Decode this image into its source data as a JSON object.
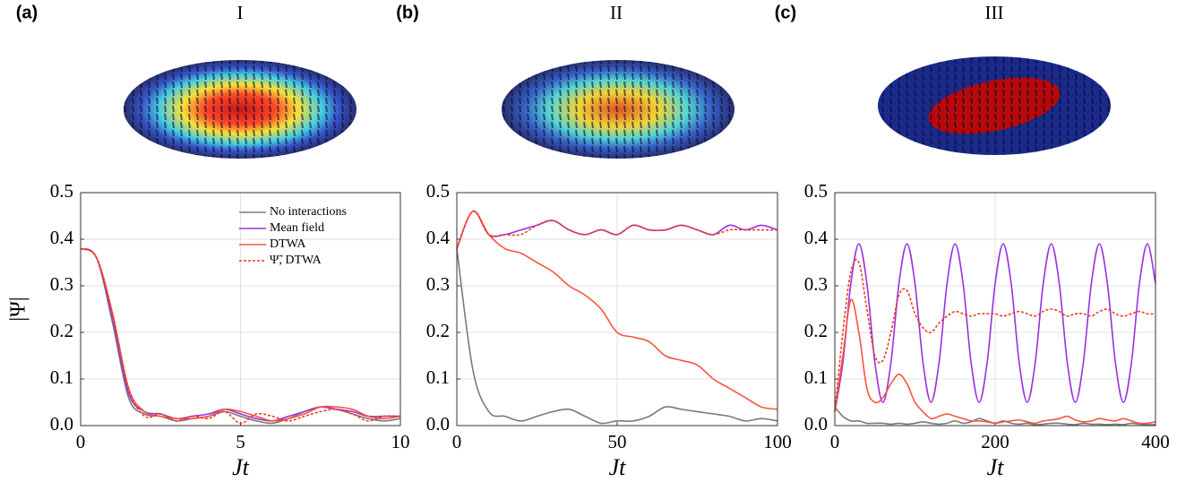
{
  "chart_data": [
    {
      "type": "line",
      "label": "(a)",
      "title": "I",
      "ylabel": "|Ψ|",
      "xlabel": "Jt",
      "x": [
        0,
        0.5,
        1,
        1.5,
        2,
        2.5,
        3,
        3.5,
        4,
        4.5,
        5,
        5.5,
        6,
        6.5,
        7,
        7.5,
        8,
        8.5,
        9,
        9.5,
        10
      ],
      "xlim": [
        0,
        10
      ],
      "xticks": [
        0,
        5,
        10
      ],
      "ylim": [
        0,
        0.5
      ],
      "yticks": [
        {
          "value": 0,
          "label": "0.0"
        },
        0.1,
        0.2,
        0.3,
        0.4,
        0.5
      ],
      "grid": true,
      "legend": "upper right",
      "series": [
        {
          "name": "No interactions",
          "color": "#7a7a7a",
          "values": [
            0.38,
            0.36,
            0.22,
            0.06,
            0.025,
            0.02,
            0.01,
            0.015,
            0.02,
            0.03,
            0.02,
            0.01,
            0.005,
            0.015,
            0.03,
            0.04,
            0.035,
            0.025,
            0.015,
            0.01,
            0.015
          ]
        },
        {
          "name": "Mean field",
          "color": "#9b30e0",
          "values": [
            0.38,
            0.36,
            0.23,
            0.07,
            0.03,
            0.025,
            0.015,
            0.02,
            0.025,
            0.035,
            0.025,
            0.015,
            0.01,
            0.02,
            0.03,
            0.04,
            0.035,
            0.03,
            0.02,
            0.02,
            0.02
          ]
        },
        {
          "name": "DTWA",
          "color": "#f4563e",
          "values": [
            0.38,
            0.36,
            0.24,
            0.08,
            0.03,
            0.02,
            0.015,
            0.015,
            0.02,
            0.035,
            0.03,
            0.02,
            0.01,
            0.015,
            0.025,
            0.04,
            0.04,
            0.035,
            0.02,
            0.015,
            0.02
          ]
        },
        {
          "name": "Ψ̃, DTWA",
          "color": "#f03a22",
          "dashed": true,
          "values": [
            0.38,
            0.36,
            0.24,
            0.08,
            0.02,
            0.025,
            0.01,
            0.02,
            0.015,
            0.03,
            0.005,
            0.025,
            0.02,
            0.01,
            0.02,
            0.03,
            0.035,
            0.025,
            0.01,
            0.02,
            0.02
          ]
        }
      ]
    },
    {
      "type": "line",
      "label": "(b)",
      "title": "II",
      "xlabel": "Jt",
      "x": [
        0,
        5,
        10,
        15,
        20,
        25,
        30,
        35,
        40,
        45,
        50,
        55,
        60,
        65,
        70,
        75,
        80,
        85,
        90,
        95,
        100
      ],
      "xlim": [
        0,
        100
      ],
      "xticks": [
        0,
        50,
        100
      ],
      "ylim": [
        0,
        0.5
      ],
      "yticks": [
        {
          "value": 0,
          "label": "0.0"
        },
        0.1,
        0.2,
        0.3,
        0.4,
        0.5
      ],
      "grid": true,
      "series": [
        {
          "color": "#7a7a7a",
          "values": [
            0.38,
            0.12,
            0.03,
            0.02,
            0.01,
            0.02,
            0.03,
            0.035,
            0.02,
            0.005,
            0.01,
            0.01,
            0.02,
            0.04,
            0.035,
            0.03,
            0.025,
            0.02,
            0.01,
            0.015,
            0.01
          ]
        },
        {
          "color": "#9b30e0",
          "values": [
            0.38,
            0.46,
            0.41,
            0.41,
            0.42,
            0.43,
            0.44,
            0.42,
            0.41,
            0.42,
            0.41,
            0.43,
            0.42,
            0.42,
            0.43,
            0.42,
            0.41,
            0.43,
            0.42,
            0.43,
            0.42
          ]
        },
        {
          "color": "#f4563e",
          "values": [
            0.38,
            0.46,
            0.41,
            0.38,
            0.37,
            0.35,
            0.33,
            0.3,
            0.28,
            0.25,
            0.2,
            0.19,
            0.18,
            0.15,
            0.14,
            0.13,
            0.1,
            0.08,
            0.06,
            0.04,
            0.035
          ]
        },
        {
          "color": "#f03a22",
          "dashed": true,
          "values": [
            0.38,
            0.46,
            0.41,
            0.41,
            0.41,
            0.43,
            0.44,
            0.42,
            0.41,
            0.42,
            0.41,
            0.43,
            0.42,
            0.42,
            0.43,
            0.42,
            0.41,
            0.42,
            0.42,
            0.42,
            0.42
          ]
        }
      ]
    },
    {
      "type": "line",
      "label": "(c)",
      "title": "III",
      "xlabel": "Jt",
      "x": [
        0,
        10,
        20,
        30,
        40,
        50,
        60,
        70,
        80,
        90,
        100,
        110,
        120,
        130,
        140,
        150,
        160,
        170,
        180,
        190,
        200,
        210,
        220,
        230,
        240,
        250,
        260,
        270,
        280,
        290,
        300,
        310,
        320,
        330,
        340,
        350,
        360,
        370,
        380,
        390,
        400
      ],
      "xlim": [
        0,
        400
      ],
      "xticks": [
        0,
        200,
        400
      ],
      "ylim": [
        0,
        0.5
      ],
      "yticks": [
        {
          "value": 0,
          "label": "0.0"
        },
        0.1,
        0.2,
        0.3,
        0.4,
        0.5
      ],
      "grid": true,
      "series": [
        {
          "color": "#7a7a7a",
          "values": [
            0.04,
            0.02,
            0.01,
            0.01,
            0.005,
            0.005,
            0.005,
            0.003,
            0.005,
            0.003,
            0.005,
            0.008,
            0.005,
            0.003,
            0.005,
            0.01,
            0.005,
            0.008,
            0.015,
            0.01,
            0.005,
            0.01,
            0.005,
            0.003,
            0.005,
            0.002,
            0.003,
            0.005,
            0.005,
            0.003,
            0.002,
            0.005,
            0.003,
            0.003,
            0.002,
            0.003,
            0.002,
            0.005,
            0.003,
            0.002,
            0.002
          ]
        },
        {
          "color": "#9b30e0",
          "values": [
            0.03,
            0.135,
            0.305,
            0.39,
            0.305,
            0.135,
            0.05,
            0.135,
            0.305,
            0.39,
            0.305,
            0.135,
            0.05,
            0.135,
            0.305,
            0.39,
            0.305,
            0.135,
            0.05,
            0.135,
            0.305,
            0.39,
            0.305,
            0.135,
            0.05,
            0.135,
            0.305,
            0.39,
            0.305,
            0.135,
            0.05,
            0.135,
            0.305,
            0.39,
            0.305,
            0.135,
            0.05,
            0.135,
            0.305,
            0.39,
            0.305
          ]
        },
        {
          "color": "#f4563e",
          "values": [
            0.03,
            0.15,
            0.27,
            0.2,
            0.08,
            0.05,
            0.06,
            0.09,
            0.11,
            0.09,
            0.05,
            0.03,
            0.015,
            0.02,
            0.025,
            0.02,
            0.015,
            0.01,
            0.01,
            0.008,
            0.005,
            0.008,
            0.01,
            0.012,
            0.008,
            0.005,
            0.01,
            0.012,
            0.015,
            0.02,
            0.012,
            0.008,
            0.01,
            0.015,
            0.012,
            0.01,
            0.015,
            0.01,
            0.005,
            0.005,
            0.008
          ]
        },
        {
          "color": "#f03a22",
          "dashed": true,
          "values": [
            0.03,
            0.2,
            0.33,
            0.35,
            0.25,
            0.15,
            0.14,
            0.2,
            0.28,
            0.29,
            0.24,
            0.21,
            0.2,
            0.22,
            0.235,
            0.245,
            0.24,
            0.235,
            0.24,
            0.24,
            0.24,
            0.235,
            0.24,
            0.245,
            0.24,
            0.235,
            0.245,
            0.25,
            0.245,
            0.235,
            0.24,
            0.24,
            0.235,
            0.245,
            0.25,
            0.24,
            0.235,
            0.24,
            0.245,
            0.24,
            0.24
          ]
        }
      ]
    }
  ]
}
